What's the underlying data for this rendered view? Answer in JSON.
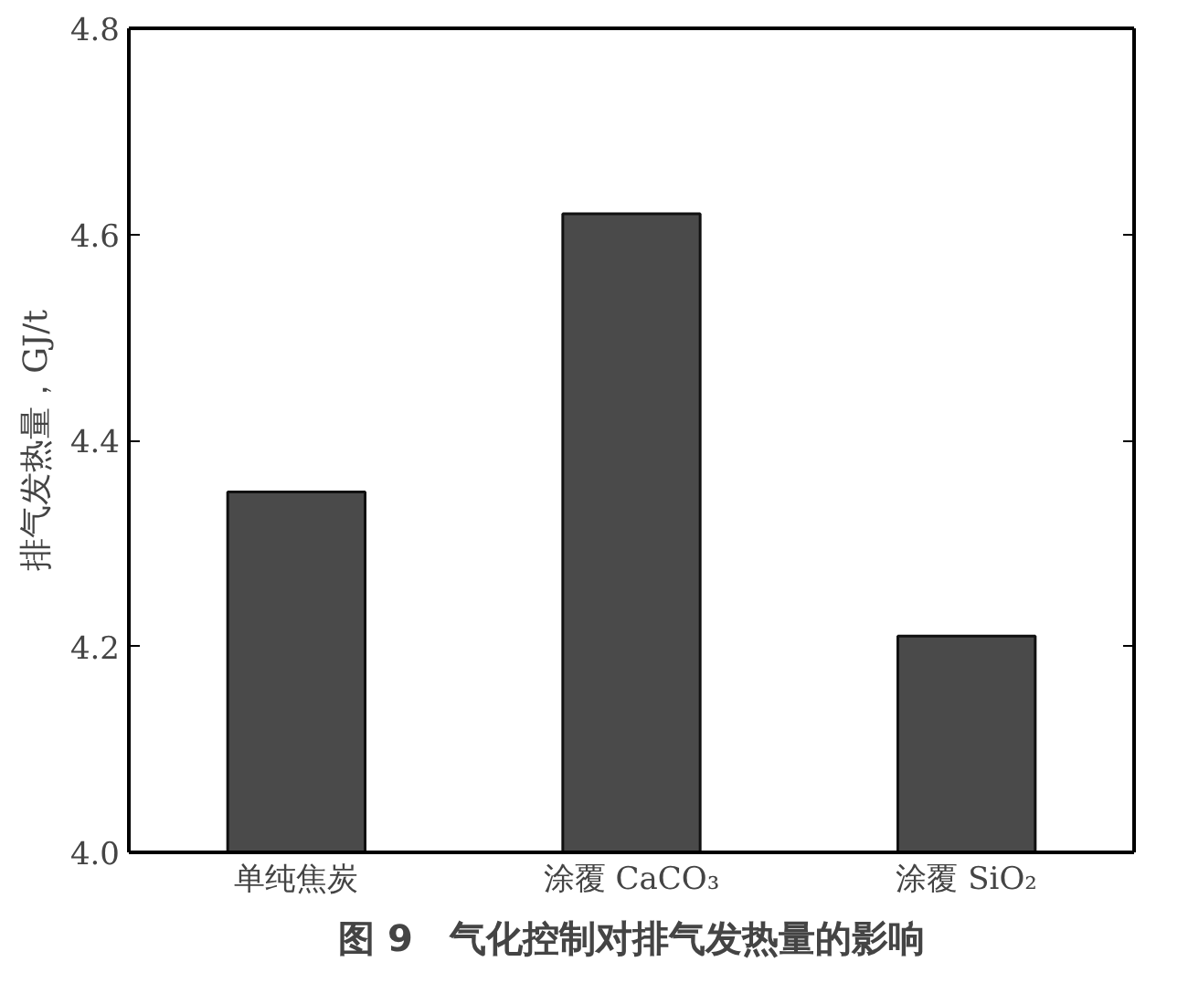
{
  "chart_data": {
    "type": "bar",
    "title": "图 9　气化控制对排气发热量的影响",
    "ylabel": "排气发热量，GJ/t",
    "categories": [
      "单纯焦炭",
      "涂覆 CaCO₃",
      "涂覆 SiO₂"
    ],
    "values": [
      4.35,
      4.62,
      4.21
    ],
    "color": "#4a4a4a",
    "ylim": [
      4.0,
      4.8
    ],
    "yticks": [
      {
        "value": 4.0,
        "label": "4.0"
      },
      {
        "value": 4.2,
        "label": "4.2"
      },
      {
        "value": 4.4,
        "label": "4.4"
      },
      {
        "value": 4.6,
        "label": "4.6"
      },
      {
        "value": 4.8,
        "label": "4.8"
      }
    ],
    "grid": false
  }
}
